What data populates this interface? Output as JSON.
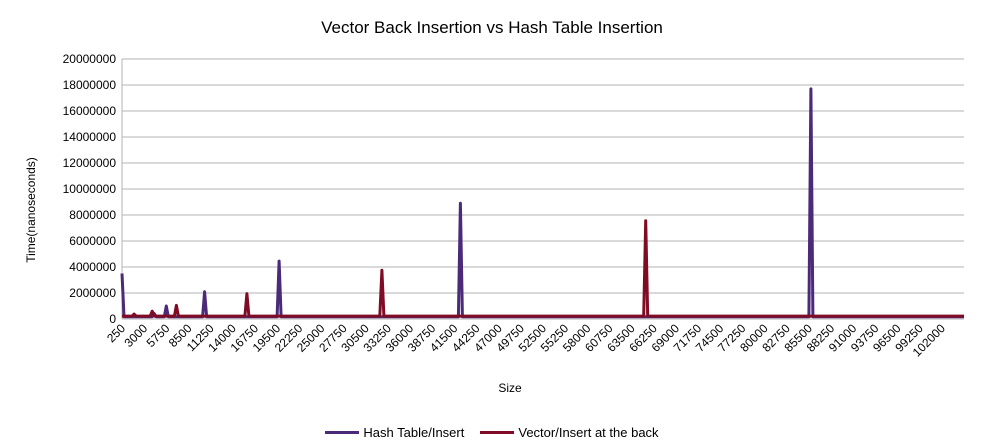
{
  "chart_data": {
    "type": "line",
    "title": "Vector Back Insertion vs Hash Table Insertion",
    "xlabel": "Size",
    "ylabel": "Time(nanoseconds)",
    "ylim": [
      0,
      20000000
    ],
    "y_ticks": [
      "0",
      "2000000",
      "4000000",
      "6000000",
      "8000000",
      "10000000",
      "12000000",
      "14000000",
      "16000000",
      "18000000",
      "20000000"
    ],
    "x_ticks": [
      "250",
      "3000",
      "5750",
      "8500",
      "11250",
      "14000",
      "16750",
      "19500",
      "22250",
      "25000",
      "27750",
      "30500",
      "33250",
      "36000",
      "38750",
      "41500",
      "44250",
      "47000",
      "49750",
      "52500",
      "55250",
      "58000",
      "60750",
      "63500",
      "66250",
      "69000",
      "71750",
      "74500",
      "77250",
      "80000",
      "82750",
      "85500",
      "88250",
      "91000",
      "93750",
      "96500",
      "99250",
      "102000"
    ],
    "x": {
      "start": 250,
      "end": 104750,
      "step": 250
    },
    "grid": "horizontal",
    "legend": "bottom",
    "series": [
      {
        "name": "Hash Table/Insert",
        "color": "#4b2a7a",
        "baseline": 180000,
        "spikes": [
          [
            250,
            3500000
          ],
          [
            4250,
            420000
          ],
          [
            5750,
            1000000
          ],
          [
            10500,
            2100000
          ],
          [
            19750,
            4450000
          ],
          [
            42250,
            8900000
          ],
          [
            85750,
            17700000
          ]
        ]
      },
      {
        "name": "Vector/Insert at the back",
        "color": "#7f0c24",
        "baseline": 220000,
        "spikes": [
          [
            1750,
            380000
          ],
          [
            4000,
            600000
          ],
          [
            7000,
            1050000
          ],
          [
            15750,
            1950000
          ],
          [
            32500,
            3750000
          ],
          [
            65250,
            7550000
          ]
        ]
      }
    ]
  }
}
